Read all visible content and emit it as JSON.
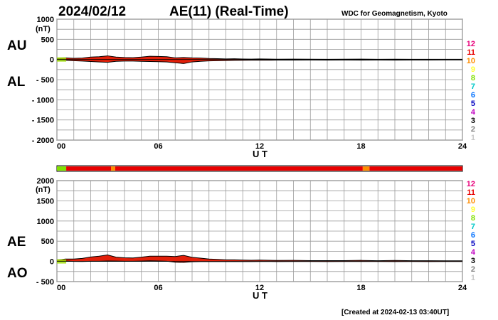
{
  "header": {
    "date": "2024/02/12",
    "title": "AE(11) (Real-Time)",
    "source": "WDC for Geomagnetism, Kyoto"
  },
  "footer": {
    "created": "[Created at 2024-02-13 03:40UT]"
  },
  "scale_labels": [
    "12",
    "11",
    "10",
    "9",
    "8",
    "7",
    "6",
    "5",
    "4",
    "3",
    "2",
    "1"
  ],
  "scale_colors": [
    "#e8007a",
    "#e80000",
    "#ff8c00",
    "#ffff33",
    "#80e000",
    "#00c8c8",
    "#0070ff",
    "#0000c0",
    "#c000c0",
    "#000000",
    "#808080",
    "#c8c8c8"
  ],
  "status_bar": {
    "segments": [
      {
        "from": 0,
        "to": 0.55,
        "level": "8"
      },
      {
        "from": 0.55,
        "to": 3.2,
        "level": "11"
      },
      {
        "from": 3.2,
        "to": 3.45,
        "level": "10"
      },
      {
        "from": 3.45,
        "to": 18.1,
        "level": "11"
      },
      {
        "from": 18.1,
        "to": 18.5,
        "level": "10"
      },
      {
        "from": 18.5,
        "to": 24,
        "level": "11"
      }
    ]
  },
  "chart_data": [
    {
      "type": "area",
      "panel": "AU/AL",
      "labels": {
        "upper": "AU",
        "lower": "AL",
        "unit": "(nT)",
        "xlabel": "U T"
      },
      "ylim": [
        -2000,
        1000
      ],
      "yticks": [
        1000,
        500,
        0,
        -500,
        -1000,
        -1500,
        -2000
      ],
      "ytick_labels": [
        "1000",
        "500",
        "0",
        "- 500",
        "- 1000",
        "- 1500",
        "- 2000"
      ],
      "xlim": [
        0,
        24
      ],
      "xticks": [
        0,
        6,
        12,
        18,
        24
      ],
      "xtick_labels": [
        "00",
        "06",
        "12",
        "18",
        "24"
      ],
      "grid": true,
      "x": [
        0,
        0.5,
        1,
        1.5,
        2,
        2.5,
        3,
        3.5,
        4,
        4.5,
        5,
        5.5,
        6,
        6.5,
        7,
        7.5,
        8,
        8.5,
        9,
        9.5,
        10,
        10.5,
        11,
        11.5,
        12,
        13,
        14,
        15,
        16,
        17,
        18,
        19,
        20,
        21,
        22,
        23,
        24
      ],
      "series": [
        {
          "name": "AU",
          "values": [
            20,
            40,
            30,
            35,
            60,
            70,
            90,
            60,
            50,
            45,
            60,
            80,
            75,
            70,
            40,
            50,
            40,
            35,
            25,
            20,
            15,
            18,
            12,
            10,
            15,
            8,
            10,
            8,
            6,
            8,
            10,
            6,
            8,
            6,
            5,
            6,
            5
          ]
        },
        {
          "name": "AL",
          "values": [
            -10,
            -20,
            -30,
            -40,
            -50,
            -60,
            -70,
            -45,
            -40,
            -40,
            -45,
            -50,
            -55,
            -60,
            -80,
            -100,
            -60,
            -45,
            -35,
            -30,
            -25,
            -22,
            -20,
            -18,
            -18,
            -15,
            -15,
            -12,
            -14,
            -12,
            -15,
            -12,
            -15,
            -12,
            -12,
            -10,
            -10
          ]
        }
      ]
    },
    {
      "type": "area",
      "panel": "AE/AO",
      "labels": {
        "upper": "AE",
        "lower": "AO",
        "unit": "(nT)",
        "xlabel": "U T"
      },
      "ylim": [
        -500,
        2000
      ],
      "yticks": [
        2000,
        1500,
        1000,
        500,
        0,
        -500
      ],
      "ytick_labels": [
        "2000",
        "1500",
        "1000",
        "500",
        "0",
        "- 500"
      ],
      "xlim": [
        0,
        24
      ],
      "xticks": [
        0,
        6,
        12,
        18,
        24
      ],
      "xtick_labels": [
        "00",
        "06",
        "12",
        "18",
        "24"
      ],
      "grid": true,
      "x": [
        0,
        0.5,
        1,
        1.5,
        2,
        2.5,
        3,
        3.5,
        4,
        4.5,
        5,
        5.5,
        6,
        6.5,
        7,
        7.5,
        8,
        8.5,
        9,
        9.5,
        10,
        10.5,
        11,
        11.5,
        12,
        13,
        14,
        15,
        16,
        17,
        18,
        19,
        20,
        21,
        22,
        23,
        24
      ],
      "series": [
        {
          "name": "AE",
          "values": [
            30,
            60,
            60,
            75,
            110,
            130,
            160,
            105,
            90,
            85,
            105,
            130,
            130,
            130,
            120,
            150,
            100,
            80,
            60,
            50,
            40,
            40,
            32,
            28,
            33,
            23,
            25,
            20,
            20,
            20,
            25,
            18,
            23,
            18,
            17,
            16,
            15
          ]
        },
        {
          "name": "AO",
          "values": [
            5,
            10,
            0,
            -3,
            5,
            5,
            10,
            8,
            5,
            3,
            8,
            15,
            10,
            5,
            -20,
            -25,
            -10,
            -5,
            -5,
            -5,
            -5,
            -2,
            -4,
            -4,
            -2,
            -4,
            -3,
            -2,
            -4,
            -2,
            -3,
            -3,
            -4,
            -3,
            -4,
            -2,
            -3
          ]
        }
      ]
    }
  ]
}
